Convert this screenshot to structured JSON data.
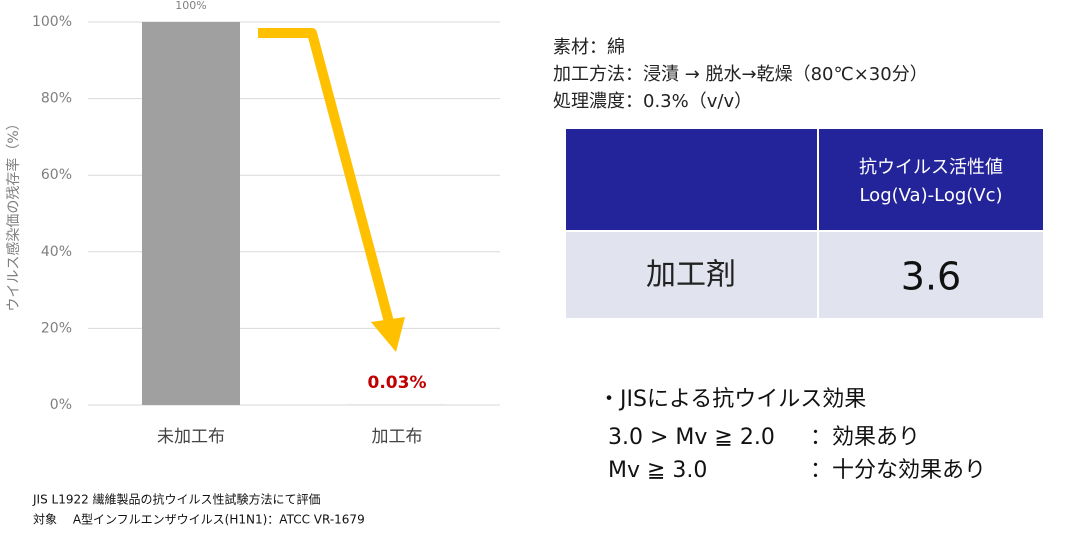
{
  "chart_data": {
    "type": "bar",
    "y_label": "ウイルス感染価の残存率（%）",
    "categories": [
      "未加工布",
      "加工布"
    ],
    "values": [
      100,
      0.03
    ],
    "value_labels": [
      "100%",
      "0.03%"
    ],
    "value_label_colors": [
      "#7f7f7f",
      "#c00000"
    ],
    "color": "#a0a0a0",
    "ylim": [
      0,
      100
    ],
    "yticks": [
      {
        "value": 0,
        "label": "0%"
      },
      {
        "value": 20,
        "label": "20%"
      },
      {
        "value": 40,
        "label": "40%"
      },
      {
        "value": 60,
        "label": "60%"
      },
      {
        "value": 80,
        "label": "80%"
      },
      {
        "value": 100,
        "label": "100%"
      }
    ],
    "grid": true
  },
  "conditions": [
    "素材：綿",
    "加工方法：浸漬 → 脱水→乾燥（80℃×30分）",
    "処理濃度：0.3%（v/v）"
  ],
  "table": {
    "header": [
      "抗ウイルス活性値",
      "Log(Va)-Log(Vc)"
    ],
    "rows": [
      [
        "加工剤",
        "3.6"
      ]
    ]
  },
  "criteria": {
    "title": "・JISによる抗ウイルス効果",
    "rows": [
      [
        "3.0 > Mv ≧ 2.0",
        "：効果あり"
      ],
      [
        "Mv ≧ 3.0",
        "：十分な効果あり"
      ]
    ]
  },
  "notes": [
    "JIS L1922 繊維製品の抗ウイルス性試験方法にて評価",
    "対象　 A型インフルエンザウイルス(H1N1)：ATCC VR-1679"
  ]
}
